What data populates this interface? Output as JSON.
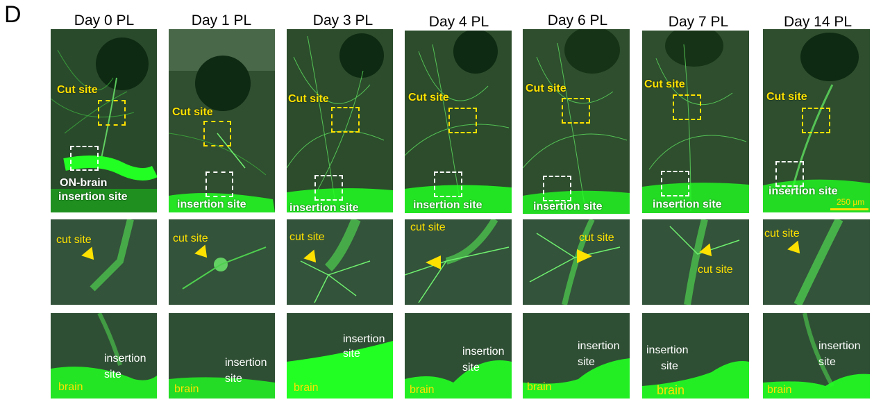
{
  "panel_letter": "D",
  "days": [
    "Day 0 PL",
    "Day 1 PL",
    "Day 3 PL",
    "Day 4 PL",
    "Day 6 PL",
    "Day 7 PL",
    "Day 14 PL"
  ],
  "top_row": {
    "cut_site": "Cut site",
    "insertion_site": "insertion site",
    "on_brain_line1": "ON-brain",
    "on_brain_line2": "insertion site",
    "scale_bar": "250 µm"
  },
  "middle_row": {
    "cut_site": "cut site"
  },
  "bottom_row": {
    "brain": "brain",
    "insertion": "insertion",
    "site": "site"
  },
  "colors": {
    "label_yellow": "#ffe100",
    "tissue_green": "#2a4a2a",
    "fluorescence": "#22ff22"
  }
}
